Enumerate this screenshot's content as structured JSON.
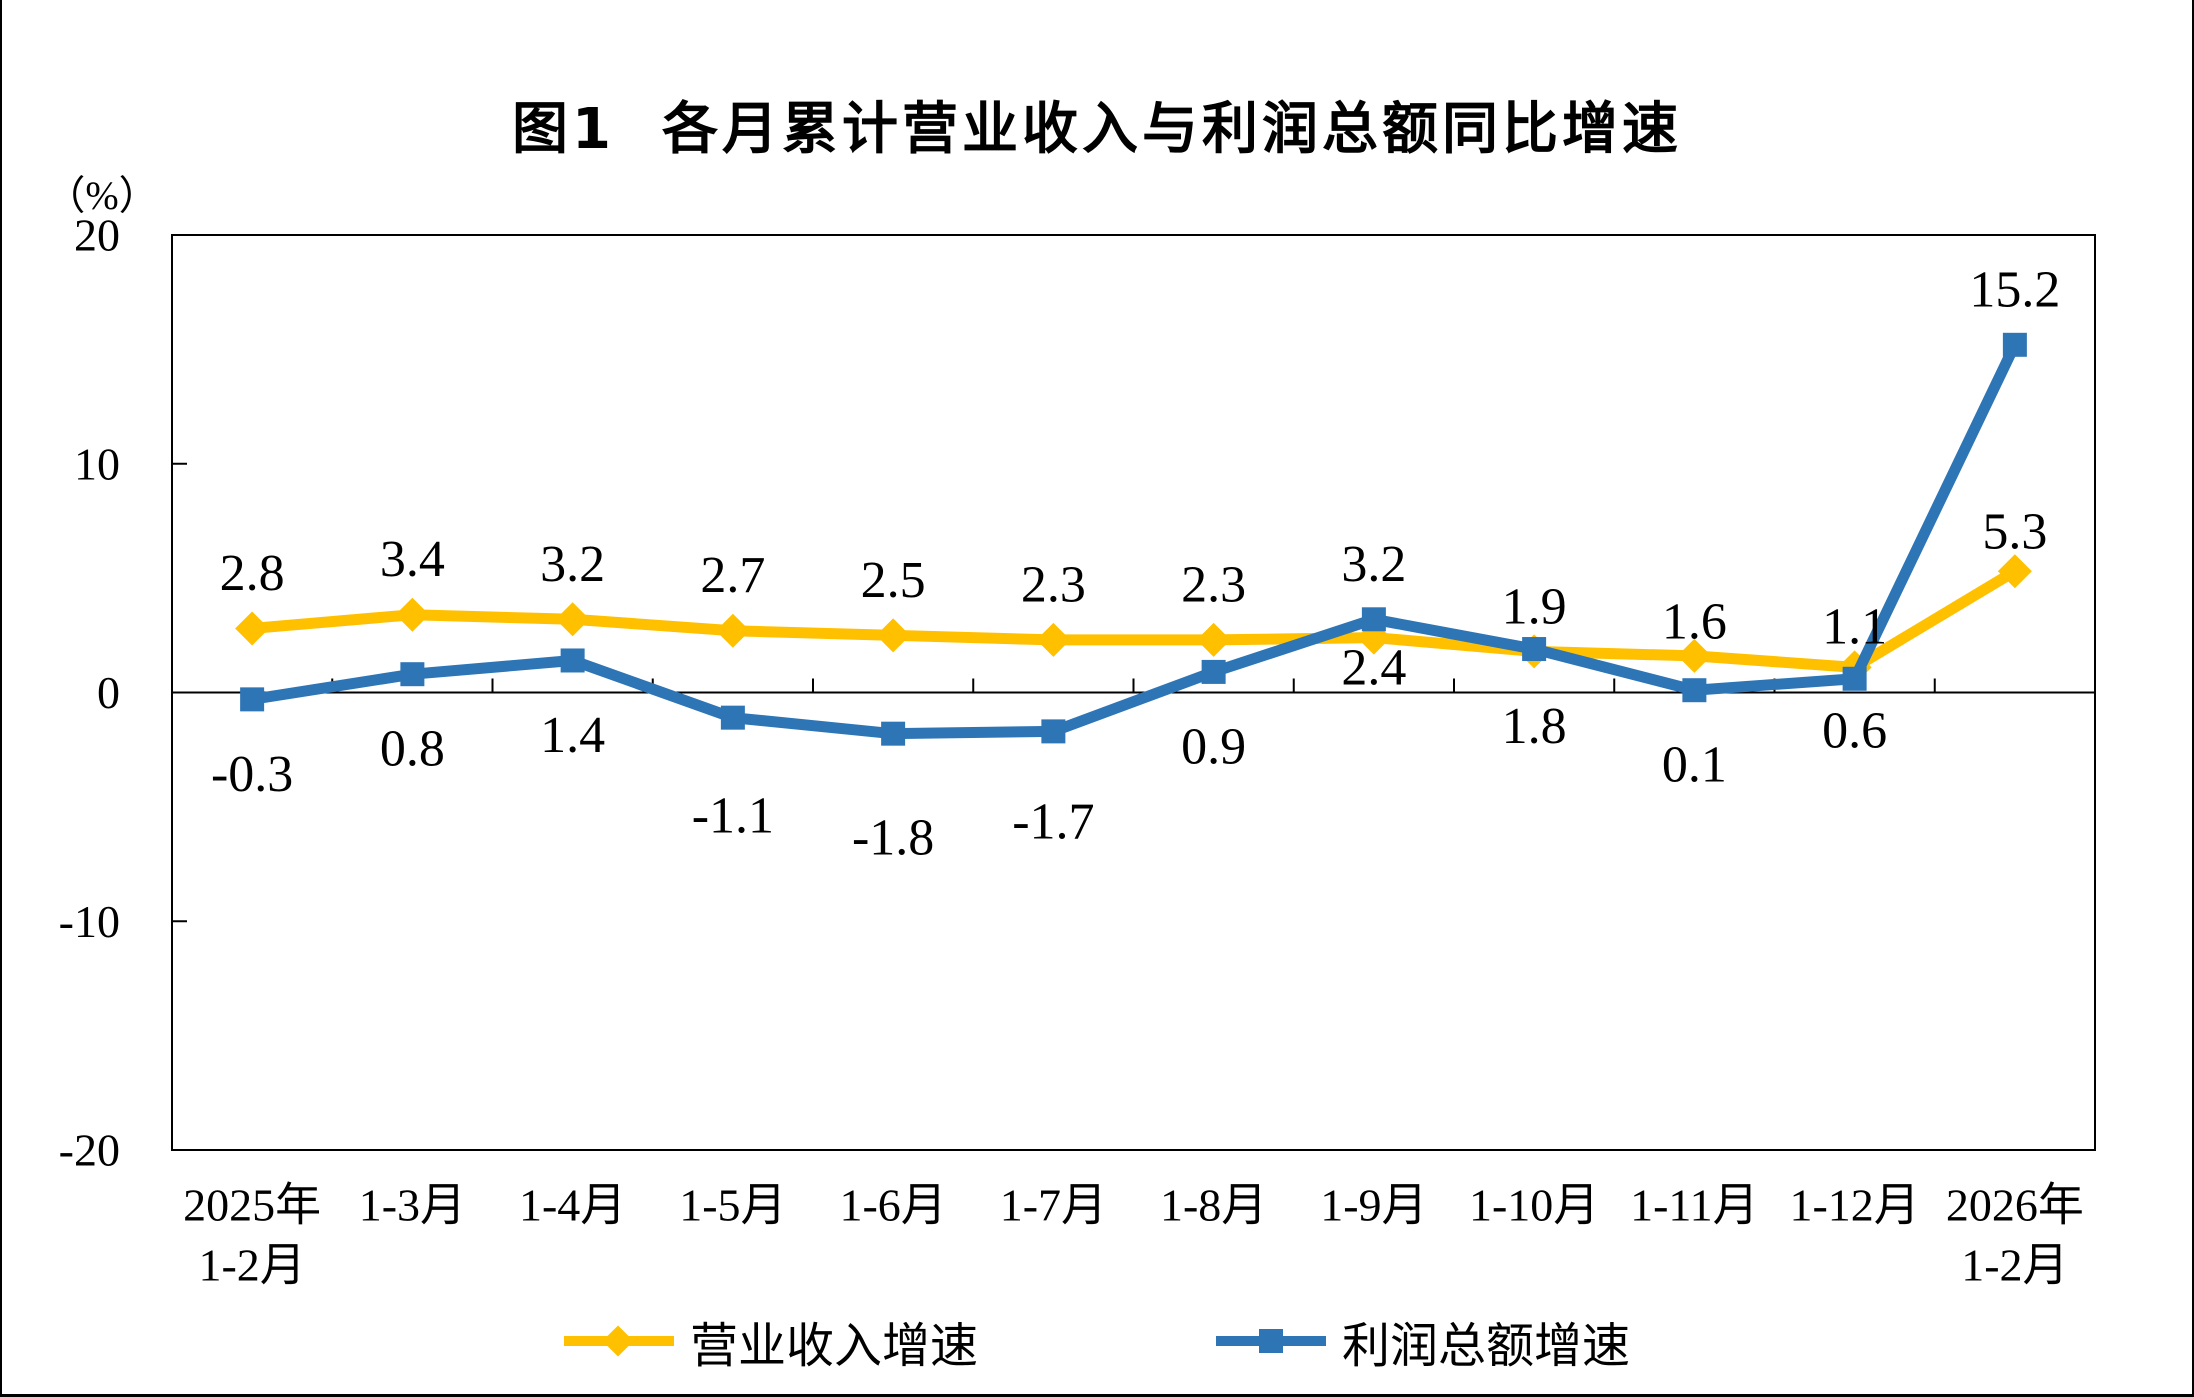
{
  "chart_data": {
    "type": "line",
    "title": "图1  各月累计营业收入与利润总额同比增速",
    "unit_label": "（%）",
    "categories": [
      "2025年\n1-2月",
      "1-3月",
      "1-4月",
      "1-5月",
      "1-6月",
      "1-7月",
      "1-8月",
      "1-9月",
      "1-10月",
      "1-11月",
      "1-12月",
      "2026年\n1-2月"
    ],
    "y_axis": {
      "min": -20,
      "max": 20,
      "ticks": [
        20,
        10,
        0,
        -10,
        -20
      ]
    },
    "grid": "off",
    "legend_position": "bottom",
    "series": [
      {
        "name": "营业收入增速",
        "color": "#FFC000",
        "marker": "diamond",
        "values": [
          2.8,
          3.4,
          3.2,
          2.7,
          2.5,
          2.3,
          2.3,
          2.4,
          1.8,
          1.6,
          1.1,
          5.3
        ],
        "label_sides": [
          "above",
          "above",
          "above",
          "above",
          "above",
          "above",
          "above",
          "below",
          "below",
          "above",
          "above",
          "above"
        ]
      },
      {
        "name": "利润总额增速",
        "color": "#2E75B6",
        "marker": "square",
        "values": [
          -0.3,
          0.8,
          1.4,
          -1.1,
          -1.8,
          -1.7,
          0.9,
          3.2,
          1.9,
          0.1,
          0.6,
          15.2
        ],
        "label_sides": [
          "below",
          "below",
          "below",
          "below",
          "below",
          "below",
          "below",
          "above",
          "above",
          "below",
          "below",
          "above"
        ]
      }
    ]
  }
}
